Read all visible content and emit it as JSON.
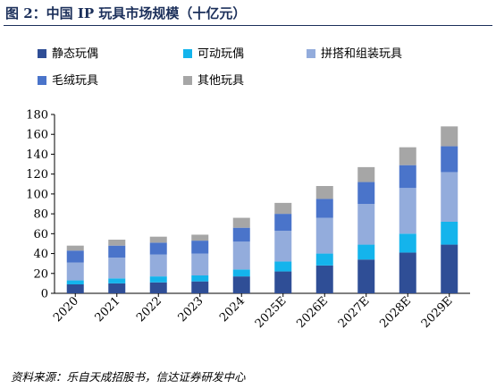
{
  "header": {
    "title": "图 2：中国 IP 玩具市场规模（十亿元）"
  },
  "source_note": "资料来源：乐自天成招股书，信达证券研发中心",
  "chart_data": {
    "type": "bar",
    "stacked": true,
    "title": "中国 IP 玩具市场规模（十亿元）",
    "categories": [
      "2020",
      "2021",
      "2022",
      "2023",
      "2024",
      "2025E",
      "2026E",
      "2027E",
      "2028E",
      "2029E"
    ],
    "series": [
      {
        "name": "静态玩偶",
        "color": "#2f4e96",
        "values": [
          9,
          10,
          11,
          12,
          17,
          22,
          28,
          34,
          41,
          49
        ]
      },
      {
        "name": "可动玩偶",
        "color": "#14b4ec",
        "values": [
          4,
          5,
          6,
          6,
          7,
          10,
          12,
          15,
          19,
          23
        ]
      },
      {
        "name": "拼搭和组装玩具",
        "color": "#93acdc",
        "values": [
          18,
          21,
          22,
          22,
          28,
          31,
          36,
          41,
          46,
          50
        ]
      },
      {
        "name": "毛绒玩具",
        "color": "#4a74ca",
        "values": [
          12,
          12,
          12,
          13,
          14,
          17,
          19,
          22,
          23,
          26
        ]
      },
      {
        "name": "其他玩具",
        "color": "#a6a6a6",
        "values": [
          5,
          6,
          6,
          6,
          10,
          11,
          13,
          15,
          18,
          20
        ]
      }
    ],
    "ylim": [
      0,
      180
    ],
    "yticks": [
      0,
      20,
      40,
      60,
      80,
      100,
      120,
      140,
      160,
      180
    ],
    "grid": false,
    "legend": "top"
  }
}
